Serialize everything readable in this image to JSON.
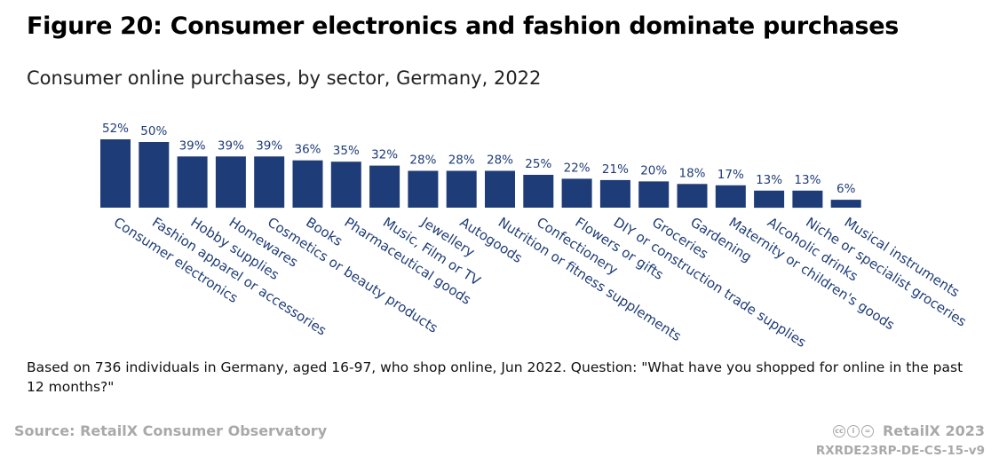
{
  "title": "Figure 20: Consumer electronics and fashion dominate purchases",
  "subtitle": "Consumer online purchases, by sector, Germany, 2022",
  "note": "Based on 736 individuals in Germany, aged 16-97, who shop online, Jun 2022. Question: \"What have you shopped for online in the past 12 months?\"",
  "source": "Source: RetailX Consumer Observatory",
  "brand": "RetailX 2023",
  "code": "RXRDE23RP-DE-CS-15-v9",
  "icons": {
    "license": "creative-commons-icon"
  },
  "colors": {
    "bar": "#1e3c78",
    "source_text": "#a9a9a9"
  },
  "chart_data": {
    "type": "bar",
    "title": "Figure 20: Consumer electronics and fashion dominate purchases",
    "subtitle": "Consumer online purchases, by sector, Germany, 2022",
    "categories": [
      "Consumer electronics",
      "Fashion apparel or accessories",
      "Hobby supplies",
      "Homewares",
      "Cosmetics or beauty products",
      "Books",
      "Pharmaceutical goods",
      "Music, Film or TV",
      "Jewellery",
      "Autogoods",
      "Nutrition or fitness supplements",
      "Confectionery",
      "Flowers or gifts",
      "DIY or construction trade supplies",
      "Groceries",
      "Gardening",
      "Maternity or children's goods",
      "Alcoholic drinks",
      "Niche or specialist groceries",
      "Musical instruments"
    ],
    "values": [
      52,
      50,
      39,
      39,
      39,
      36,
      35,
      32,
      28,
      28,
      28,
      25,
      22,
      21,
      20,
      18,
      17,
      13,
      13,
      6
    ],
    "value_labels": [
      "52%",
      "50%",
      "39%",
      "39%",
      "39%",
      "36%",
      "35%",
      "32%",
      "28%",
      "28%",
      "28%",
      "25%",
      "22%",
      "21%",
      "20%",
      "18%",
      "17%",
      "13%",
      "13%",
      "6%"
    ],
    "unit": "%",
    "ylim": [
      0,
      52
    ],
    "xlabel": "",
    "ylabel": "",
    "grid": false,
    "legend": "none"
  }
}
